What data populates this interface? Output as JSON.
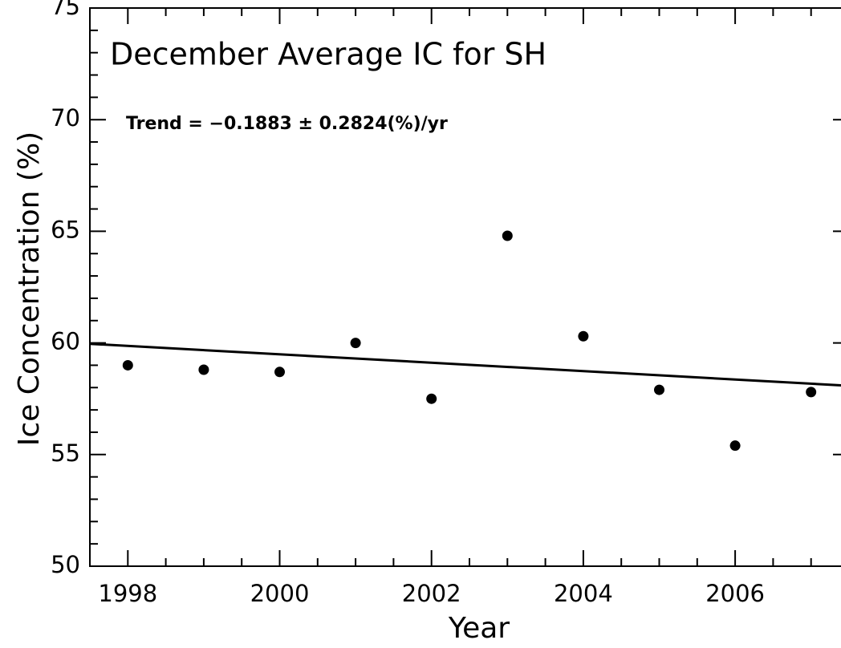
{
  "chart_data": {
    "type": "scatter",
    "title": "December Average IC for SH",
    "annotation": "Trend = −0.1883 ± 0.2824(%)/yr",
    "xlabel": "Year",
    "ylabel": "Ice Concentration (%)",
    "x": [
      1998,
      1999,
      2000,
      2001,
      2002,
      2003,
      2004,
      2005,
      2006,
      2007
    ],
    "values": [
      59.0,
      58.8,
      58.7,
      60.0,
      57.5,
      64.8,
      60.3,
      57.9,
      55.4,
      57.8
    ],
    "color": "#000000",
    "trend": {
      "x": [
        1997.5,
        2007.5
      ],
      "values": [
        59.96,
        58.08
      ]
    },
    "xlim": [
      1997.5,
      2007.5
    ],
    "xticks": [
      1998,
      2000,
      2002,
      2004,
      2006
    ],
    "x_minor_ticks": [
      1998.5,
      1999,
      1999.5,
      2000.5,
      2001,
      2001.5,
      2002.5,
      2003,
      2003.5,
      2004.5,
      2005,
      2005.5,
      2006.5,
      2007
    ],
    "ylim": [
      50,
      75
    ],
    "yticks": [
      50,
      55,
      60,
      65,
      70,
      75
    ],
    "y_minor_ticks": [
      51,
      52,
      53,
      54,
      56,
      57,
      58,
      59,
      61,
      62,
      63,
      64,
      66,
      67,
      68,
      69,
      71,
      72,
      73,
      74
    ],
    "grid": false
  }
}
